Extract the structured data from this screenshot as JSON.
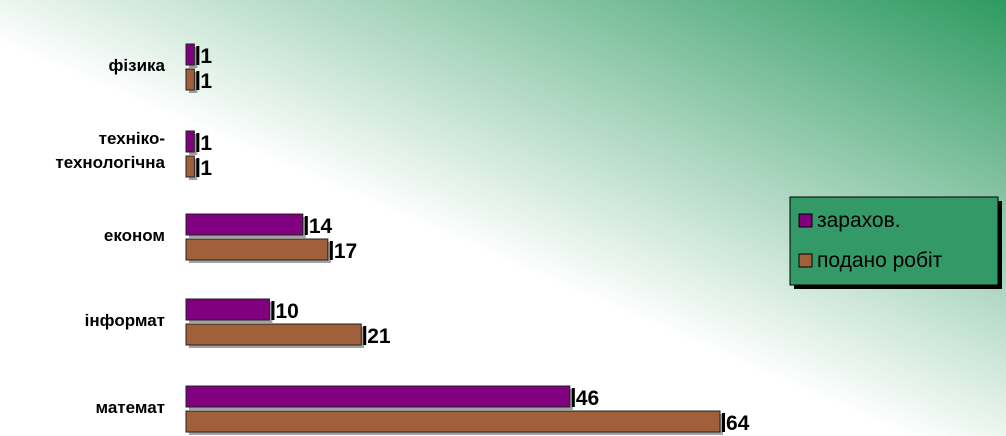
{
  "chart_data": {
    "type": "bar",
    "orientation": "horizontal",
    "categories": [
      "фізика",
      "техніко-технологічна",
      "економ",
      "інформат",
      "математ"
    ],
    "category_label_lines": [
      [
        "фізика"
      ],
      [
        "техніко-",
        "технологічна"
      ],
      [
        "економ"
      ],
      [
        "інформат"
      ],
      [
        "математ"
      ]
    ],
    "series": [
      {
        "name": "зарахов.",
        "values": [
          1,
          1,
          14,
          10,
          46
        ]
      },
      {
        "name": "подано робіт",
        "values": [
          1,
          1,
          17,
          21,
          64
        ]
      }
    ],
    "xlim": [
      0,
      64
    ],
    "legend_position": "right",
    "grid": false,
    "colors": {
      "series": [
        "#800080",
        "#a0603a"
      ],
      "background_light": "#ffffff",
      "background_dark": "#2f9a62",
      "legend_bg": "#339966"
    }
  }
}
